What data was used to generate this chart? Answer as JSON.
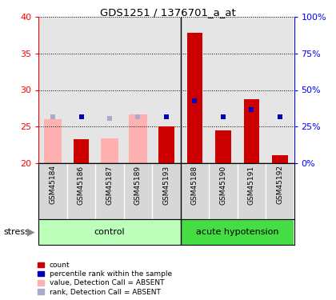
{
  "title": "GDS1251 / 1376701_a_at",
  "samples": [
    "GSM45184",
    "GSM45186",
    "GSM45187",
    "GSM45189",
    "GSM45193",
    "GSM45188",
    "GSM45190",
    "GSM45191",
    "GSM45192"
  ],
  "n_control": 5,
  "red_values": [
    null,
    23.3,
    null,
    null,
    25.0,
    37.8,
    24.5,
    28.7,
    21.1
  ],
  "pink_values": [
    26.0,
    null,
    23.4,
    26.7,
    null,
    null,
    null,
    null,
    null
  ],
  "blue_squares": [
    26.3,
    26.3,
    26.1,
    26.4,
    26.3,
    28.5,
    26.3,
    27.3,
    26.3
  ],
  "absent_mask": [
    true,
    false,
    true,
    true,
    false,
    false,
    false,
    false,
    false
  ],
  "ylim_left": [
    20,
    40
  ],
  "ylim_right": [
    0,
    100
  ],
  "yticks_left": [
    20,
    25,
    30,
    35,
    40
  ],
  "yticks_right": [
    0,
    25,
    50,
    75,
    100
  ],
  "ytick_labels_right": [
    "0%",
    "25%",
    "50%",
    "75%",
    "100%"
  ],
  "color_red": "#cc0000",
  "color_pink": "#ffb0b0",
  "color_blue": "#0000bb",
  "color_light_blue": "#aaaacc",
  "color_gray": "#d0d0d0",
  "color_green_light": "#bbffbb",
  "color_green_dark": "#44dd44",
  "stress_label": "stress",
  "legend_labels": [
    "count",
    "percentile rank within the sample",
    "value, Detection Call = ABSENT",
    "rank, Detection Call = ABSENT"
  ],
  "legend_colors": [
    "#cc0000",
    "#0000bb",
    "#ffb0b0",
    "#aaaacc"
  ]
}
